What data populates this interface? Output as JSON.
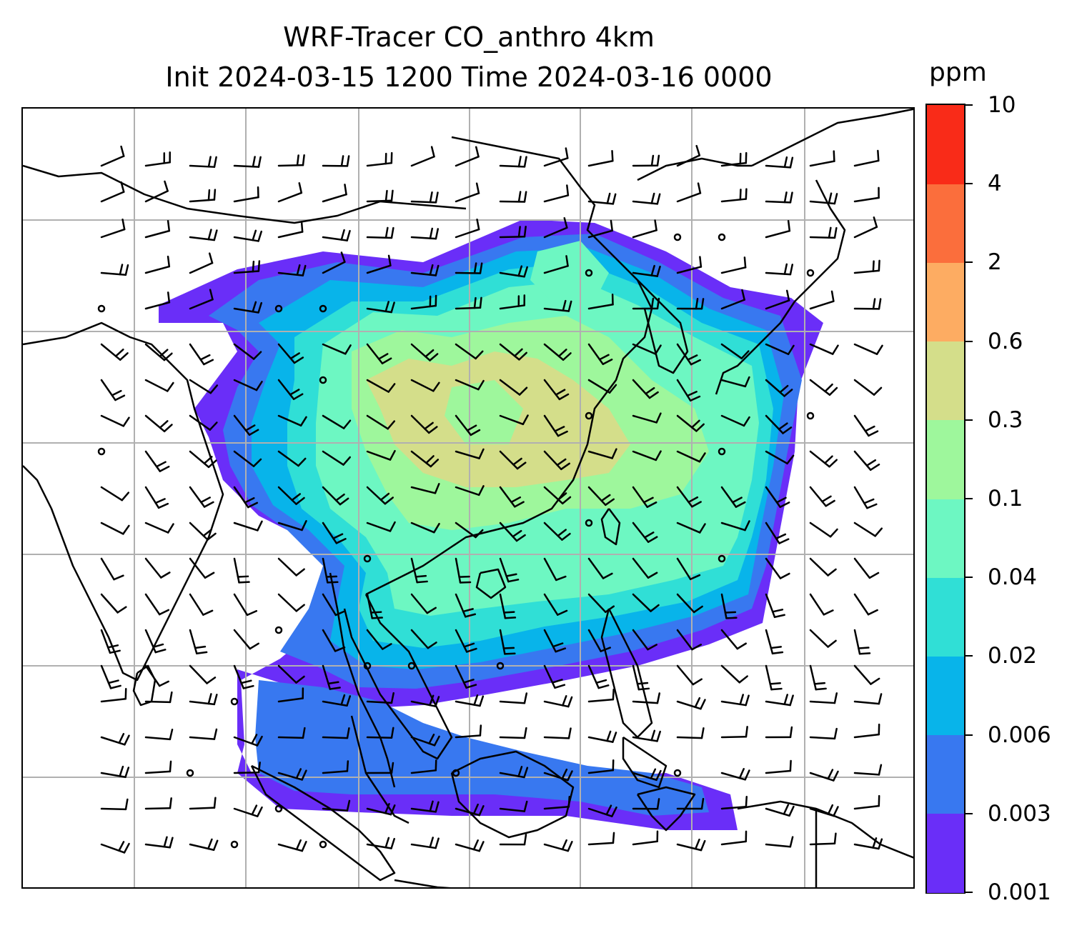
{
  "figure": {
    "title_line1": "WRF-Tracer CO_anthro 4km",
    "title_line2": "Init 2024-03-15 1200 Time 2024-03-16 0000"
  },
  "colorbar": {
    "unit": "ppm",
    "levels": [
      "0.001",
      "0.003",
      "0.006",
      "0.02",
      "0.04",
      "0.1",
      "0.3",
      "0.6",
      "2",
      "4",
      "10"
    ],
    "colors": [
      "#6a2ef8",
      "#3878f0",
      "#08b4ea",
      "#30dfd6",
      "#6df7c2",
      "#9ef79c",
      "#d4de8a",
      "#fdac62",
      "#fb6e3c",
      "#f92b18"
    ]
  },
  "map": {
    "gridlines": true,
    "coastline_color": "#000000",
    "gridline_color": "#b0b0b0",
    "wind_barbs": true
  }
}
